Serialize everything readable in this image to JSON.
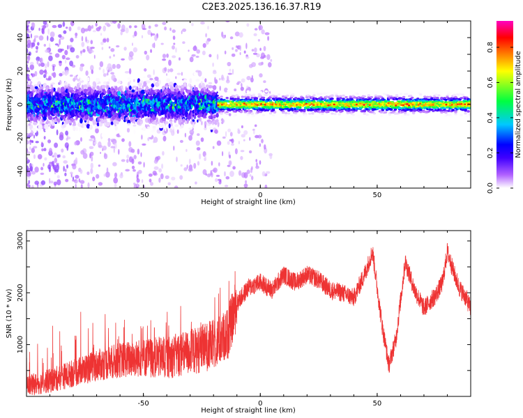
{
  "title": "C2E3.2025.136.16.37.R19",
  "chart_data": [
    {
      "type": "heatmap",
      "xlabel": "Height of straight line (km)",
      "ylabel": "Frequency (Hz)",
      "xlim": [
        -100,
        90
      ],
      "ylim": [
        -50,
        50
      ],
      "xticks": [
        -50,
        0,
        50
      ],
      "yticks": [
        -40,
        -20,
        0,
        20,
        40
      ],
      "colorbar": {
        "label": "Normalized spectral amplitude",
        "range": [
          0,
          0.95
        ],
        "ticks": [
          0,
          0.2,
          0.4,
          0.6,
          0.8
        ],
        "tick_labels": [
          "0.0",
          "0.2",
          "0.4",
          "0.6",
          "0.8"
        ],
        "colors": [
          "#ffffff",
          "#a04cff",
          "#0000ff",
          "#00c8ff",
          "#00ff40",
          "#ffff00",
          "#ff8000",
          "#ff0000",
          "#ff00ff"
        ]
      },
      "ridge": {
        "center_freq_hz": 0,
        "description_bands": [
          {
            "x_range": [
              -100,
              -18
            ],
            "peak_amplitude": 0.3,
            "half_width_hz": 5
          },
          {
            "x_range": [
              -18,
              90
            ],
            "peak_amplitude": 0.75,
            "half_width_hz": 2
          }
        ]
      },
      "grid": false
    },
    {
      "type": "line",
      "xlabel": "Height of straight line (km)",
      "ylabel": "SNR (10 * v/v)",
      "xlim": [
        -100,
        90
      ],
      "ylim": [
        0,
        3200
      ],
      "xticks": [
        -50,
        0,
        50
      ],
      "yticks": [
        1000,
        2000,
        3000
      ],
      "series": [
        {
          "color": "#ee3333",
          "x": [
            -100,
            -90,
            -80,
            -70,
            -60,
            -50,
            -40,
            -30,
            -20,
            -14,
            -10,
            -5,
            0,
            5,
            10,
            15,
            20,
            25,
            30,
            35,
            40,
            45,
            48,
            52,
            55,
            58,
            62,
            66,
            70,
            75,
            78,
            80,
            82,
            85,
            88,
            90
          ],
          "values": [
            200,
            300,
            450,
            600,
            700,
            750,
            750,
            850,
            1000,
            1200,
            1800,
            2100,
            2200,
            2050,
            2350,
            2200,
            2350,
            2250,
            2050,
            2000,
            1900,
            2400,
            2800,
            1400,
            600,
            1100,
            2600,
            2050,
            1700,
            1950,
            2200,
            2800,
            2500,
            2100,
            1900,
            1700
          ],
          "noise_amplitude": 500
        }
      ],
      "grid": false
    }
  ]
}
